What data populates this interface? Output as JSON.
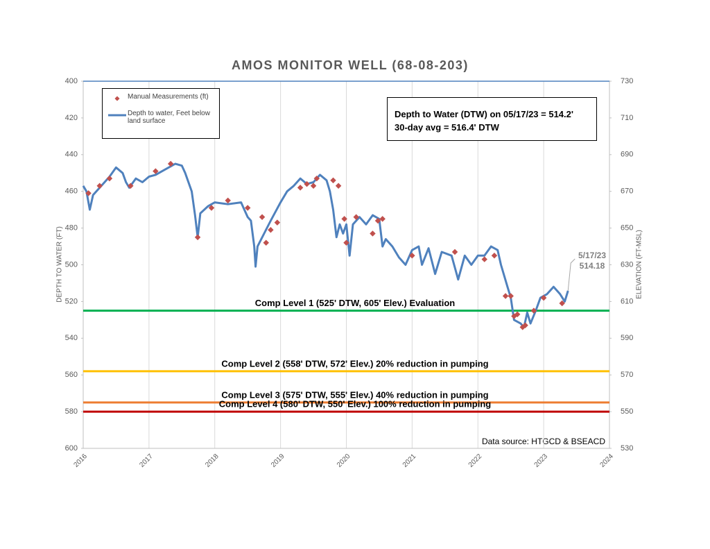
{
  "chart_data": {
    "type": "line",
    "title": "AMOS MONITOR WELL (68-08-203)",
    "y_label": "DEPTH TO WATER (FT)",
    "y2_label": "ELEVATION (FT-MSL)",
    "xlim": [
      2016,
      2024
    ],
    "xticks": [
      2016,
      2017,
      2018,
      2019,
      2020,
      2021,
      2022,
      2023,
      2024
    ],
    "ylim": [
      400,
      600
    ],
    "y_inverted": true,
    "yticks": [
      400,
      420,
      440,
      460,
      480,
      500,
      520,
      540,
      560,
      580,
      600
    ],
    "y2lim": [
      530,
      730
    ],
    "y2ticks": [
      530,
      550,
      570,
      590,
      610,
      630,
      650,
      670,
      690,
      710,
      730
    ],
    "grid": true,
    "series": [
      {
        "name": "Depth to water, Feet below land surface",
        "type": "line",
        "color": "#4f81bd",
        "x": [
          2016.0,
          2016.05,
          2016.1,
          2016.15,
          2016.3,
          2016.4,
          2016.5,
          2016.6,
          2016.65,
          2016.7,
          2016.8,
          2016.9,
          2017.0,
          2017.1,
          2017.2,
          2017.3,
          2017.4,
          2017.5,
          2017.55,
          2017.65,
          2017.7,
          2017.74,
          2017.78,
          2017.9,
          2018.0,
          2018.2,
          2018.4,
          2018.45,
          2018.5,
          2018.55,
          2018.6,
          2018.62,
          2018.65,
          2018.75,
          2018.85,
          2019.0,
          2019.1,
          2019.2,
          2019.3,
          2019.4,
          2019.5,
          2019.6,
          2019.7,
          2019.75,
          2019.8,
          2019.85,
          2019.9,
          2019.95,
          2020.0,
          2020.05,
          2020.1,
          2020.2,
          2020.3,
          2020.4,
          2020.5,
          2020.55,
          2020.6,
          2020.7,
          2020.8,
          2020.9,
          2021.0,
          2021.1,
          2021.15,
          2021.25,
          2021.35,
          2021.45,
          2021.6,
          2021.7,
          2021.8,
          2021.9,
          2022.0,
          2022.1,
          2022.2,
          2022.3,
          2022.35,
          2022.45,
          2022.5,
          2022.55,
          2022.65,
          2022.7,
          2022.75,
          2022.8,
          2022.88,
          2022.95,
          2023.05,
          2023.15,
          2023.25,
          2023.32,
          2023.37
        ],
        "values": [
          457,
          460,
          470,
          462,
          456,
          452,
          447,
          450,
          455,
          458,
          453,
          455,
          452,
          451,
          449,
          447,
          445,
          446,
          450,
          460,
          473,
          485,
          472,
          468,
          466,
          467,
          466,
          470,
          474,
          476,
          490,
          501,
          490,
          483,
          476,
          466,
          460,
          457,
          453,
          456,
          455,
          451,
          454,
          460,
          470,
          485,
          478,
          483,
          478,
          495,
          478,
          474,
          478,
          473,
          475,
          490,
          486,
          490,
          496,
          500,
          492,
          490,
          500,
          491,
          505,
          493,
          495,
          508,
          495,
          500,
          495,
          495,
          490,
          492,
          500,
          512,
          518,
          530,
          532,
          534,
          526,
          532,
          525,
          518,
          516,
          512,
          516,
          520,
          514.18
        ]
      },
      {
        "name": "Manual Measurements (ft)",
        "type": "scatter",
        "color": "#c0504d",
        "x": [
          2016.08,
          2016.25,
          2016.4,
          2016.72,
          2017.1,
          2017.33,
          2017.74,
          2017.95,
          2018.2,
          2018.5,
          2018.72,
          2018.78,
          2018.85,
          2018.95,
          2019.3,
          2019.4,
          2019.5,
          2019.55,
          2019.8,
          2019.88,
          2019.97,
          2020.0,
          2020.15,
          2020.4,
          2020.48,
          2020.55,
          2021.0,
          2021.65,
          2022.1,
          2022.25,
          2022.42,
          2022.5,
          2022.55,
          2022.6,
          2022.68,
          2022.72,
          2022.85,
          2023.0,
          2023.28
        ],
        "values": [
          461,
          457,
          453,
          457,
          449,
          445,
          485,
          469,
          465,
          469,
          474,
          488,
          481,
          477,
          458,
          456,
          457,
          453,
          454,
          457,
          475,
          488,
          474,
          483,
          476,
          475,
          495,
          493,
          497,
          495,
          517,
          517,
          528,
          527,
          534,
          533,
          525,
          518,
          521
        ]
      }
    ],
    "reference_lines": [
      {
        "value": 525,
        "color": "#00b050",
        "label": "Comp Level 1 (525' DTW, 605' Elev.) Evaluation"
      },
      {
        "value": 558,
        "color": "#ffc000",
        "label": "Comp Level 2 (558' DTW, 572' Elev.) 20% reduction in pumping"
      },
      {
        "value": 575,
        "color": "#ed7d31",
        "label": "Comp Level 3 (575' DTW, 555' Elev.) 40% reduction in pumping"
      },
      {
        "value": 580,
        "color": "#c00000",
        "label": "Comp Level 4 (580' DTW, 550' Elev.) 100% reduction in pumping"
      }
    ],
    "info_box": [
      "Depth to Water (DTW) on 05/17/23 = 514.2'",
      "30-day avg = 516.4' DTW"
    ],
    "callout": {
      "date": "5/17/23",
      "value": "514.18"
    },
    "source": "Data source: HTGCD & BSEACD"
  }
}
